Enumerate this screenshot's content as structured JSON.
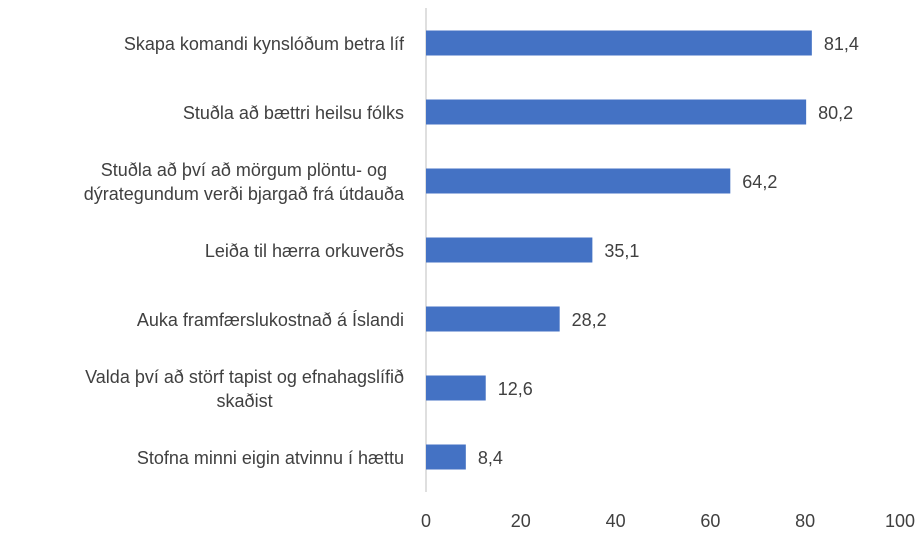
{
  "chart_data": {
    "type": "bar",
    "orientation": "horizontal",
    "categories": [
      "Skapa komandi kynslóðum betra líf",
      "Stuðla að bættri heilsu fólks",
      "Stuðla að því að mörgum plöntu- og\ndýrategundum verði bjargað frá útdauða",
      "Leiða til hærra orkuverðs",
      "Auka framfærslukostnað á Íslandi",
      "Valda því að störf tapist og efnahagslífið\nskaðist",
      "Stofna minni eigin atvinnu í hættu"
    ],
    "values": [
      81.4,
      80.2,
      64.2,
      35.1,
      28.2,
      12.6,
      8.4
    ],
    "value_labels": [
      "81,4",
      "80,2",
      "64,2",
      "35,1",
      "28,2",
      "12,6",
      "8,4"
    ],
    "color": "#4472c4",
    "xlim": [
      0,
      100
    ],
    "xticks": [
      0,
      20,
      40,
      60,
      80,
      100
    ],
    "grid": false
  }
}
